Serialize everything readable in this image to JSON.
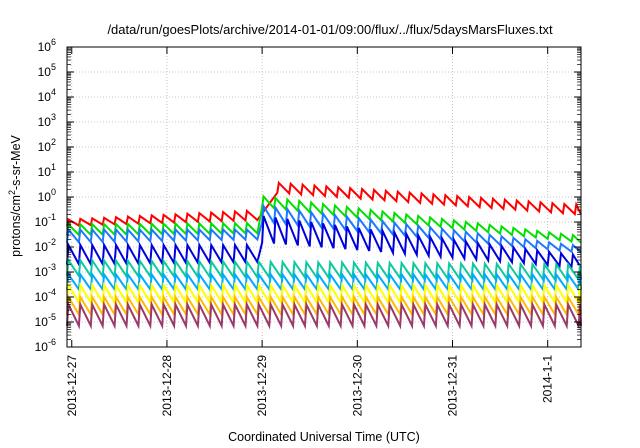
{
  "chart_data": {
    "type": "line",
    "title": "/data/run/goesPlots/archive/2014-01-01/09:00/flux/../flux/5daysMarsFluxes.txt",
    "xlabel": "Coordinated Universal Time (UTC)",
    "ylabel": "protons/cm²-s-sr-MeV",
    "ylabel_parts": {
      "pre": "protons/cm",
      "sup": "2",
      "post": "-s-sr-MeV"
    },
    "yscale": "log",
    "ylim": [
      1e-06,
      1000000.0
    ],
    "xlim": [
      -0.05,
      5.35
    ],
    "x_unit": "days since 2013-12-27 00:00 UTC",
    "x_ticks": [
      {
        "x": 0,
        "label": "2013-12-27"
      },
      {
        "x": 1,
        "label": "2013-12-28"
      },
      {
        "x": 2,
        "label": "2013-12-29"
      },
      {
        "x": 3,
        "label": "2013-12-30"
      },
      {
        "x": 4,
        "label": "2013-12-31"
      },
      {
        "x": 5,
        "label": "2014-1-1"
      }
    ],
    "y_ticks": [
      {
        "value": 1e-06,
        "mant": "10",
        "exp": "-6"
      },
      {
        "value": 1e-05,
        "mant": "10",
        "exp": "-5"
      },
      {
        "value": 0.0001,
        "mant": "10",
        "exp": "-4"
      },
      {
        "value": 0.001,
        "mant": "10",
        "exp": "-3"
      },
      {
        "value": 0.01,
        "mant": "10",
        "exp": "-2"
      },
      {
        "value": 0.1,
        "mant": "10",
        "exp": "-1"
      },
      {
        "value": 1,
        "mant": "10",
        "exp": "0"
      },
      {
        "value": 10,
        "mant": "10",
        "exp": "1"
      },
      {
        "value": 100,
        "mant": "10",
        "exp": "2"
      },
      {
        "value": 1000.0,
        "mant": "10",
        "exp": "3"
      },
      {
        "value": 10000.0,
        "mant": "10",
        "exp": "4"
      },
      {
        "value": 100000.0,
        "mant": "10",
        "exp": "5"
      },
      {
        "value": 1000000.0,
        "mant": "10",
        "exp": "6"
      }
    ],
    "grid": true,
    "sawtooth_period_days": 0.125,
    "series": [
      {
        "color": "#ff0000",
        "segments": [
          {
            "x0": -0.05,
            "x1": 1.95,
            "low0": 0.07,
            "low1": 0.12,
            "high0": 0.12,
            "high1": 0.28
          },
          {
            "x0": 2.16,
            "x1": 5.35,
            "low0": 1.5,
            "low1": 0.2,
            "high0": 4.0,
            "high1": 0.5
          }
        ]
      },
      {
        "color": "#00e000",
        "segments": [
          {
            "x0": -0.05,
            "x1": 1.95,
            "low0": 0.03,
            "low1": 0.035,
            "high0": 0.08,
            "high1": 0.09
          },
          {
            "x0": 2.0,
            "x1": 5.35,
            "low0": 0.4,
            "low1": 0.015,
            "high0": 1.2,
            "high1": 0.03
          }
        ]
      },
      {
        "color": "#1e78ff",
        "segments": [
          {
            "x0": -0.05,
            "x1": 1.95,
            "low0": 0.015,
            "low1": 0.02,
            "high0": 0.05,
            "high1": 0.05
          },
          {
            "x0": 2.0,
            "x1": 5.35,
            "low0": 0.1,
            "low1": 0.006,
            "high0": 0.5,
            "high1": 0.012
          }
        ]
      },
      {
        "color": "#0000dd",
        "segments": [
          {
            "x0": -0.05,
            "x1": 1.95,
            "low0": 0.002,
            "low1": 0.0025,
            "high0": 0.012,
            "high1": 0.012
          },
          {
            "x0": 2.0,
            "x1": 5.35,
            "low0": 0.015,
            "low1": 0.0015,
            "high0": 0.2,
            "high1": 0.005
          }
        ]
      },
      {
        "color": "#10c8a0",
        "segments": [
          {
            "x0": -0.05,
            "x1": 5.35,
            "low0": 0.0007,
            "low1": 0.0005,
            "high0": 0.003,
            "high1": 0.002
          }
        ]
      },
      {
        "color": "#00aaff",
        "segments": [
          {
            "x0": -0.05,
            "x1": 5.35,
            "low0": 0.0002,
            "low1": 0.0002,
            "high0": 0.0008,
            "high1": 0.0008
          }
        ]
      },
      {
        "color": "#ffff00",
        "segments": [
          {
            "x0": -0.05,
            "x1": 5.35,
            "low0": 6e-05,
            "low1": 6e-05,
            "high0": 0.0003,
            "high1": 0.0003
          }
        ]
      },
      {
        "color": "#ffbb00",
        "segments": [
          {
            "x0": -0.05,
            "x1": 5.35,
            "low0": 2e-05,
            "low1": 2e-05,
            "high0": 0.0001,
            "high1": 0.0001
          }
        ]
      },
      {
        "color": "#9a3a6a",
        "segments": [
          {
            "x0": -0.05,
            "x1": 5.35,
            "low0": 7e-06,
            "low1": 7e-06,
            "high0": 5e-05,
            "high1": 5e-05
          }
        ]
      }
    ]
  }
}
